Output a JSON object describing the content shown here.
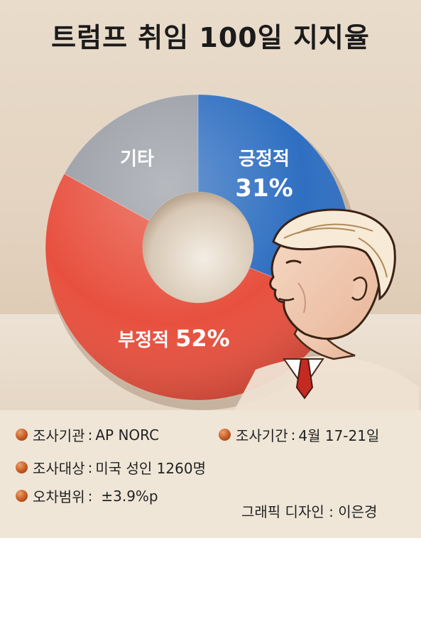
{
  "title": "트럼프 취임 100일 지지율",
  "chart_data": {
    "type": "pie",
    "categories": [
      "긍정적",
      "부정적",
      "기타"
    ],
    "values": [
      31,
      52,
      17
    ],
    "value_labels": [
      "31%",
      "52%",
      ""
    ],
    "colors": [
      "#2f6fc1",
      "#e8503e",
      "#9a9ea5"
    ]
  },
  "info": {
    "agency_label": "조사기관",
    "agency_value": "AP NORC",
    "period_label": "조사기간",
    "period_value": "4월 17-21일",
    "target_label": "조사대상",
    "target_value": "미국 성인 1260명",
    "margin_label": "오차범위",
    "margin_value": "±3.9%p",
    "separator": ":"
  },
  "credit": "그래픽 디자인 : 이은경",
  "colors": {
    "background": "#e6d7c5",
    "info_panel": "#efe6d8",
    "bullet": "#c35a22"
  },
  "icons": [
    "bullet-dot-icon",
    "trump-illustration"
  ]
}
